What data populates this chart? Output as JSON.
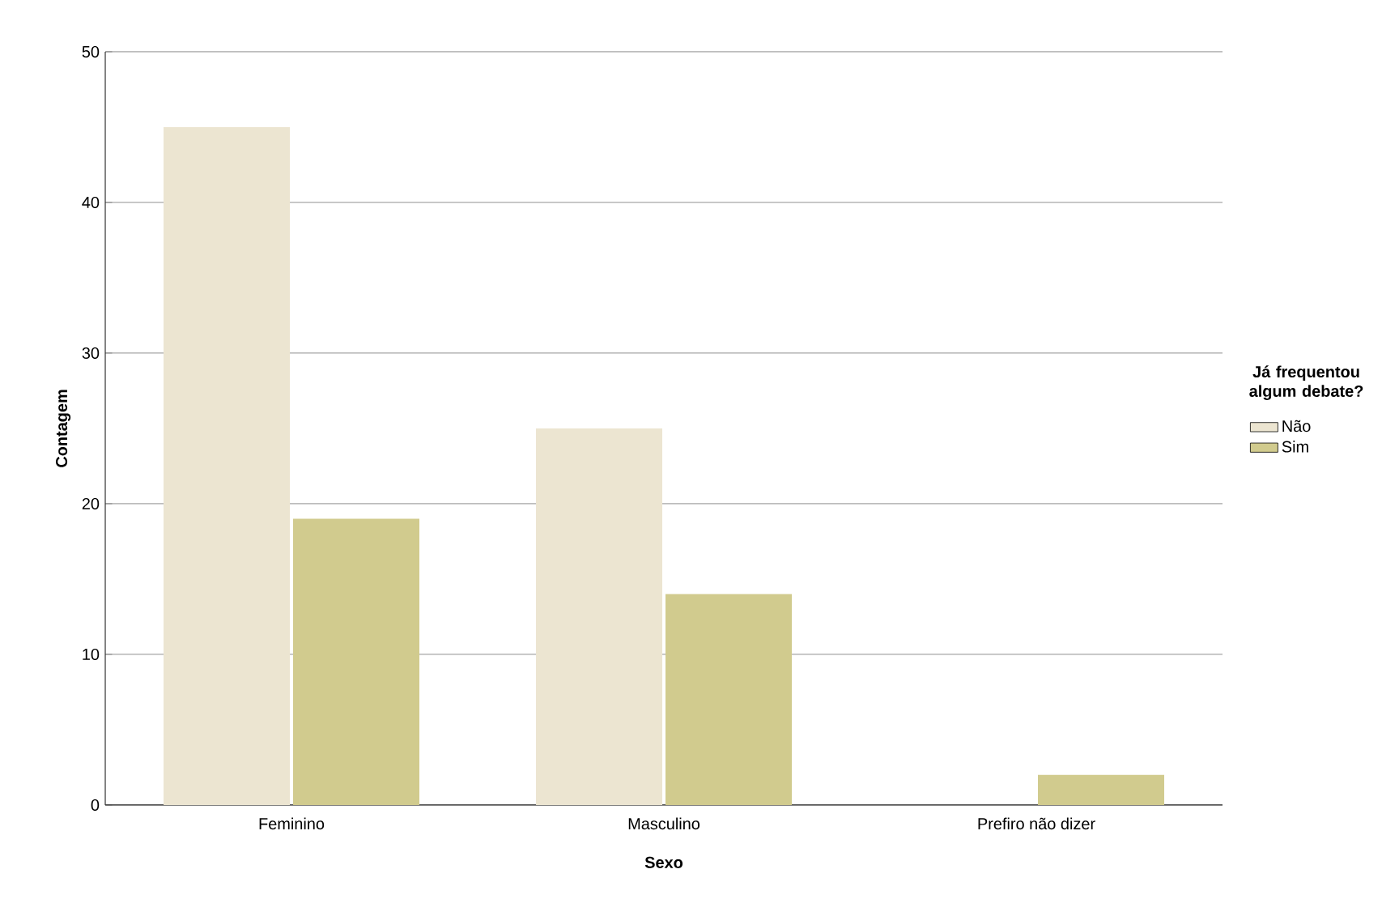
{
  "chart_data": {
    "type": "bar",
    "xlabel": "Sexo",
    "ylabel": "Contagem",
    "legend_title": "Já frequentou algum debate?",
    "categories": [
      "Feminino",
      "Masculino",
      "Prefiro não dizer"
    ],
    "series": [
      {
        "name": "Não",
        "color": "#ece5d1",
        "values": [
          45,
          25,
          0
        ]
      },
      {
        "name": "Sim",
        "color": "#d1cb8e",
        "values": [
          19,
          14,
          2
        ]
      }
    ],
    "ylim": [
      0,
      50
    ],
    "yticks": [
      0,
      10,
      20,
      30,
      40,
      50
    ],
    "grid": "y",
    "legend": "right"
  }
}
